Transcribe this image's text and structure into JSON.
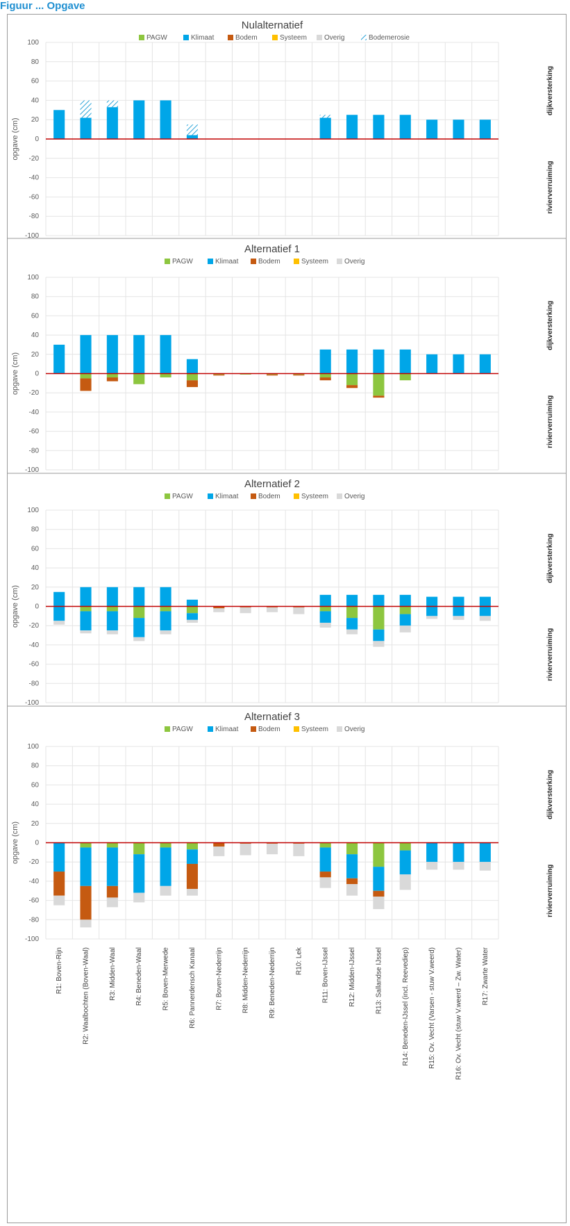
{
  "header": {
    "caption": "Figuur ... Opgave"
  },
  "legend_colors": {
    "PAGW": "#8dc63f",
    "Klimaat": "#00a6e8",
    "Bodem": "#c55a11",
    "Systeem": "#ffc000",
    "Overig": "#d9d9d9",
    "Bodemerosie": "#2aa3d8",
    "zero_line": "#c00000"
  },
  "chart_data": [
    {
      "type": "bar",
      "stacked": true,
      "title": "Nulalternatief",
      "ylabel": "opgave (cm)",
      "right_label_top": "dijkversterking",
      "right_label_bottom": "rivierverruiming",
      "ylim": [
        -100,
        100
      ],
      "yticks": [
        100,
        80,
        60,
        40,
        20,
        0,
        -20,
        -40,
        -60,
        -80,
        -100
      ],
      "legend": [
        "PAGW",
        "Klimaat",
        "Bodem",
        "Systeem",
        "Overig",
        "Bodemerosie"
      ],
      "grid": true,
      "categories": [
        "R1: Boven-Rijn",
        "R2: Waalbochten (Boven-Waal)",
        "R3: Midden-Waal",
        "R4: Beneden-Waal",
        "R5: Boven-Merwede",
        "R6: Pannerdensch Kanaal",
        "R7: Boven-Nederrijn",
        "R8: Midden-Nederrijn",
        "R9: Beneden-Nederrijn",
        "R10: Lek",
        "R11: Boven-IJssel",
        "R12: Midden-IJssel",
        "R13: Sallandse IJssel",
        "R14: Beneden-IJssel (incl. Reevediep)",
        "R15: Ov. Vecht (Varsen - stuw V.weerd)",
        "R16: Ov. Vecht (stuw V.weerd – Zw. Water)",
        "R17: Zwarte Water"
      ],
      "series": [
        {
          "name": "Klimaat",
          "values": [
            30,
            22,
            33,
            40,
            40,
            4,
            0,
            0,
            0,
            0,
            22,
            25,
            25,
            25,
            20,
            20,
            20
          ]
        },
        {
          "name": "Bodemerosie",
          "values": [
            0,
            18,
            7,
            0,
            0,
            11,
            0,
            0,
            0,
            0,
            3,
            0,
            0,
            0,
            0,
            0,
            0
          ]
        }
      ]
    },
    {
      "type": "bar",
      "stacked": true,
      "title": "Alternatief 1",
      "ylabel": "opgave (cm)",
      "right_label_top": "dijkversterking",
      "right_label_bottom": "rivierverruiming",
      "ylim": [
        -100,
        100
      ],
      "yticks": [
        100,
        80,
        60,
        40,
        20,
        0,
        -20,
        -40,
        -60,
        -80,
        -100
      ],
      "legend": [
        "PAGW",
        "Klimaat",
        "Bodem",
        "Systeem",
        "Overig"
      ],
      "grid": true,
      "categories": [
        "R1: Boven-Rijn",
        "R2: Waalbochten (Boven-Waal)",
        "R3: Midden-Waal",
        "R4: Beneden-Waal",
        "R5: Boven-Merwede",
        "R6: Pannerdensch Kanaal",
        "R7: Boven-Nederrijn",
        "R8: Midden-Nederrijn",
        "R9: Beneden-Nederrijn",
        "R10: Lek",
        "R11: Boven-IJssel",
        "R12: Midden-IJssel",
        "R13: Sallandse IJssel",
        "R14: Beneden-IJssel (incl. Reevediep)",
        "R15: Ov. Vecht (Varsen - stuw V.weerd)",
        "R16: Ov. Vecht (stuw V.weerd – Zw. Water)",
        "R17: Zwarte Water"
      ],
      "series": [
        {
          "name": "Klimaat",
          "values": [
            30,
            40,
            40,
            40,
            40,
            15,
            0,
            0,
            0,
            0,
            25,
            25,
            25,
            25,
            20,
            20,
            20
          ]
        },
        {
          "name": "PAGW",
          "values": [
            0,
            0,
            0,
            0,
            0,
            0,
            0,
            0,
            0,
            0,
            0,
            0,
            0,
            0,
            0,
            0,
            0
          ]
        },
        {
          "name": "PAGW_neg",
          "values": [
            0,
            -5,
            -4,
            -11,
            -4,
            -7,
            -1,
            -1,
            -1,
            -1,
            -4,
            -12,
            -23,
            -7,
            0,
            0,
            0
          ]
        },
        {
          "name": "Bodem",
          "values": [
            0,
            -13,
            -4,
            0,
            0,
            -7,
            -1,
            0,
            -1,
            -1,
            -3,
            -3,
            -2,
            0,
            0,
            0,
            0
          ]
        }
      ]
    },
    {
      "type": "bar",
      "stacked": true,
      "title": "Alternatief 2",
      "ylabel": "opgave (cm)",
      "right_label_top": "dijkversterking",
      "right_label_bottom": "rivierverruiming",
      "ylim": [
        -100,
        100
      ],
      "yticks": [
        100,
        80,
        60,
        40,
        20,
        0,
        -20,
        -40,
        -60,
        -80,
        -100
      ],
      "legend": [
        "PAGW",
        "Klimaat",
        "Bodem",
        "Systeem",
        "Overig"
      ],
      "grid": true,
      "categories": [
        "R1: Boven-Rijn",
        "R2: Waalbochten (Boven-Waal)",
        "R3: Midden-Waal",
        "R4: Beneden-Waal",
        "R5: Boven-Merwede",
        "R6: Pannerdensch Kanaal",
        "R7: Boven-Nederrijn",
        "R8: Midden-Nederrijn",
        "R9: Beneden-Nederrijn",
        "R10: Lek",
        "R11: Boven-IJssel",
        "R12: Midden-IJssel",
        "R13: Sallandse IJssel",
        "R14: Beneden-IJssel (incl. Reevediep)",
        "R15: Ov. Vecht (Varsen - stuw V.weerd)",
        "R16: Ov. Vecht (stuw V.weerd – Zw. Water)",
        "R17: Zwarte Water"
      ],
      "series": [
        {
          "name": "Klimaat",
          "values": [
            15,
            20,
            20,
            20,
            20,
            7,
            0,
            0,
            0,
            0,
            12,
            12,
            12,
            12,
            10,
            10,
            10
          ]
        },
        {
          "name": "PAGW_neg",
          "values": [
            0,
            -5,
            -5,
            -12,
            -5,
            -7,
            0,
            0,
            0,
            0,
            -5,
            -12,
            -24,
            -8,
            0,
            0,
            0
          ]
        },
        {
          "name": "Klimaat_neg",
          "values": [
            -15,
            -20,
            -20,
            -20,
            -20,
            -7,
            0,
            0,
            0,
            0,
            -12,
            -12,
            -12,
            -12,
            -10,
            -10,
            -10
          ]
        },
        {
          "name": "Bodem",
          "values": [
            0,
            0,
            0,
            0,
            0,
            0,
            -2,
            -1,
            -1,
            -1,
            0,
            0,
            0,
            0,
            0,
            0,
            0
          ]
        },
        {
          "name": "Overig",
          "values": [
            -4,
            -3,
            -4,
            -4,
            -4,
            -3,
            -4,
            -6,
            -5,
            -7,
            -5,
            -5,
            -6,
            -7,
            -3,
            -4,
            -5
          ]
        }
      ]
    },
    {
      "type": "bar",
      "stacked": true,
      "title": "Alternatief 3",
      "ylabel": "opgave (cm)",
      "right_label_top": "dijkversterking",
      "right_label_bottom": "rivierverruiming",
      "ylim": [
        -100,
        100
      ],
      "yticks": [
        100,
        80,
        60,
        40,
        20,
        0,
        -20,
        -40,
        -60,
        -80,
        -100
      ],
      "legend": [
        "PAGW",
        "Klimaat",
        "Bodem",
        "Systeem",
        "Overig"
      ],
      "grid": true,
      "categories": [
        "R1: Boven-Rijn",
        "R2: Waalbochten (Boven-Waal)",
        "R3: Midden-Waal",
        "R4: Beneden-Waal",
        "R5: Boven-Merwede",
        "R6: Pannerdensch Kanaal",
        "R7: Boven-Nederrijn",
        "R8: Midden-Nederrijn",
        "R9: Beneden-Nederrijn",
        "R10: Lek",
        "R11: Boven-IJssel",
        "R12: Midden-IJssel",
        "R13: Sallandse IJssel",
        "R14: Beneden-IJssel (incl. Reevediep)",
        "R15: Ov. Vecht (Varsen - stuw V.weerd)",
        "R16: Ov. Vecht (stuw V.weerd – Zw. Water)",
        "R17: Zwarte Water"
      ],
      "series": [
        {
          "name": "PAGW_neg",
          "values": [
            0,
            -5,
            -5,
            -12,
            -5,
            -7,
            0,
            0,
            0,
            0,
            -5,
            -12,
            -25,
            -8,
            0,
            0,
            0
          ]
        },
        {
          "name": "Klimaat_neg",
          "values": [
            -30,
            -40,
            -40,
            -40,
            -40,
            -15,
            0,
            0,
            0,
            0,
            -25,
            -25,
            -25,
            -25,
            -20,
            -20,
            -20
          ]
        },
        {
          "name": "Bodem",
          "values": [
            -25,
            -35,
            -12,
            0,
            0,
            -26,
            -4,
            -1,
            -1,
            -1,
            -6,
            -6,
            -6,
            0,
            0,
            0,
            0
          ]
        },
        {
          "name": "Overig",
          "values": [
            -10,
            -8,
            -10,
            -10,
            -10,
            -7,
            -10,
            -12,
            -11,
            -13,
            -11,
            -12,
            -13,
            -16,
            -8,
            -8,
            -9
          ]
        }
      ]
    }
  ]
}
